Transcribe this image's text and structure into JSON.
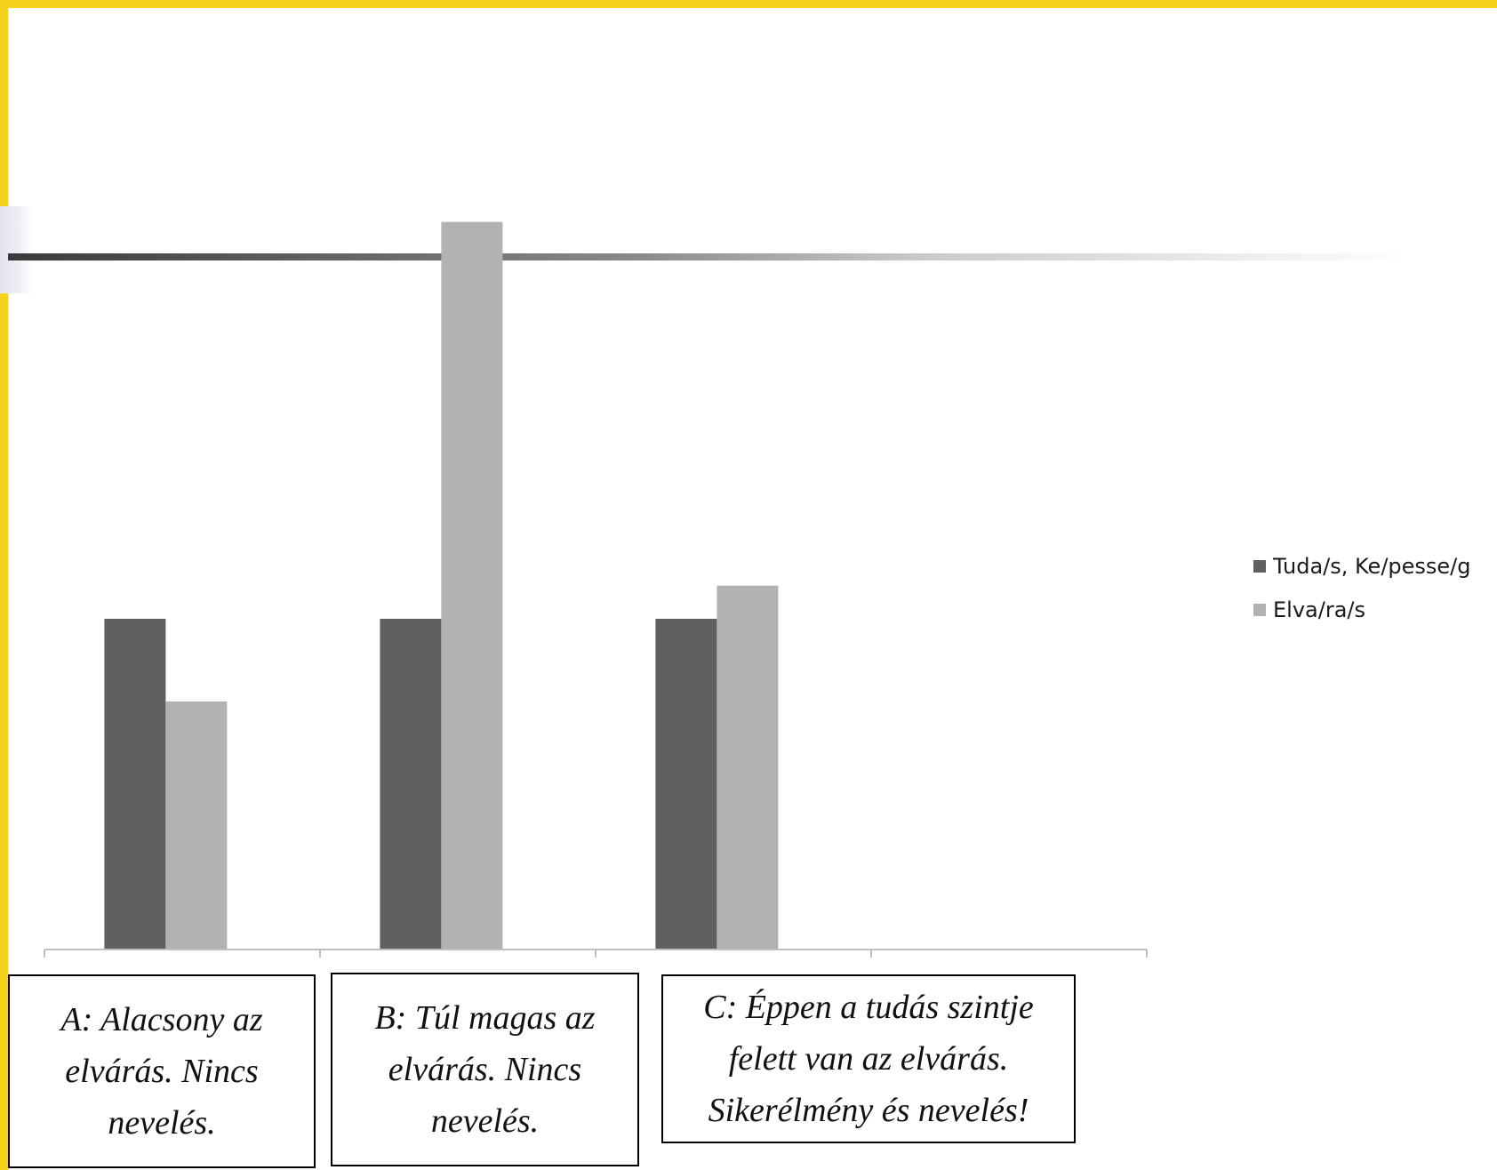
{
  "colors": {
    "frame": "#f6d21a",
    "series1": "#606060",
    "series2": "#b2b2b2",
    "axis": "#bfbfbf"
  },
  "chart_data": {
    "type": "bar",
    "categories": [
      "",
      "",
      "",
      ""
    ],
    "series": [
      {
        "name": "Tuda/s, Ke/pesse/g",
        "values": [
          4,
          4,
          4,
          null
        ]
      },
      {
        "name": "Elva/ra/s",
        "values": [
          3,
          8.8,
          4.4,
          null
        ]
      }
    ],
    "ylim": [
      0,
      10
    ],
    "grid": false,
    "legend_position": "right"
  },
  "captions": {
    "a": "A: Alacsony az elvárás. Nincs nevelés.",
    "b": "B: Túl magas az elvárás. Nincs nevelés.",
    "c": "C: Éppen a tudás szintje felett van az elvárás. Sikerélmény és nevelés!"
  }
}
